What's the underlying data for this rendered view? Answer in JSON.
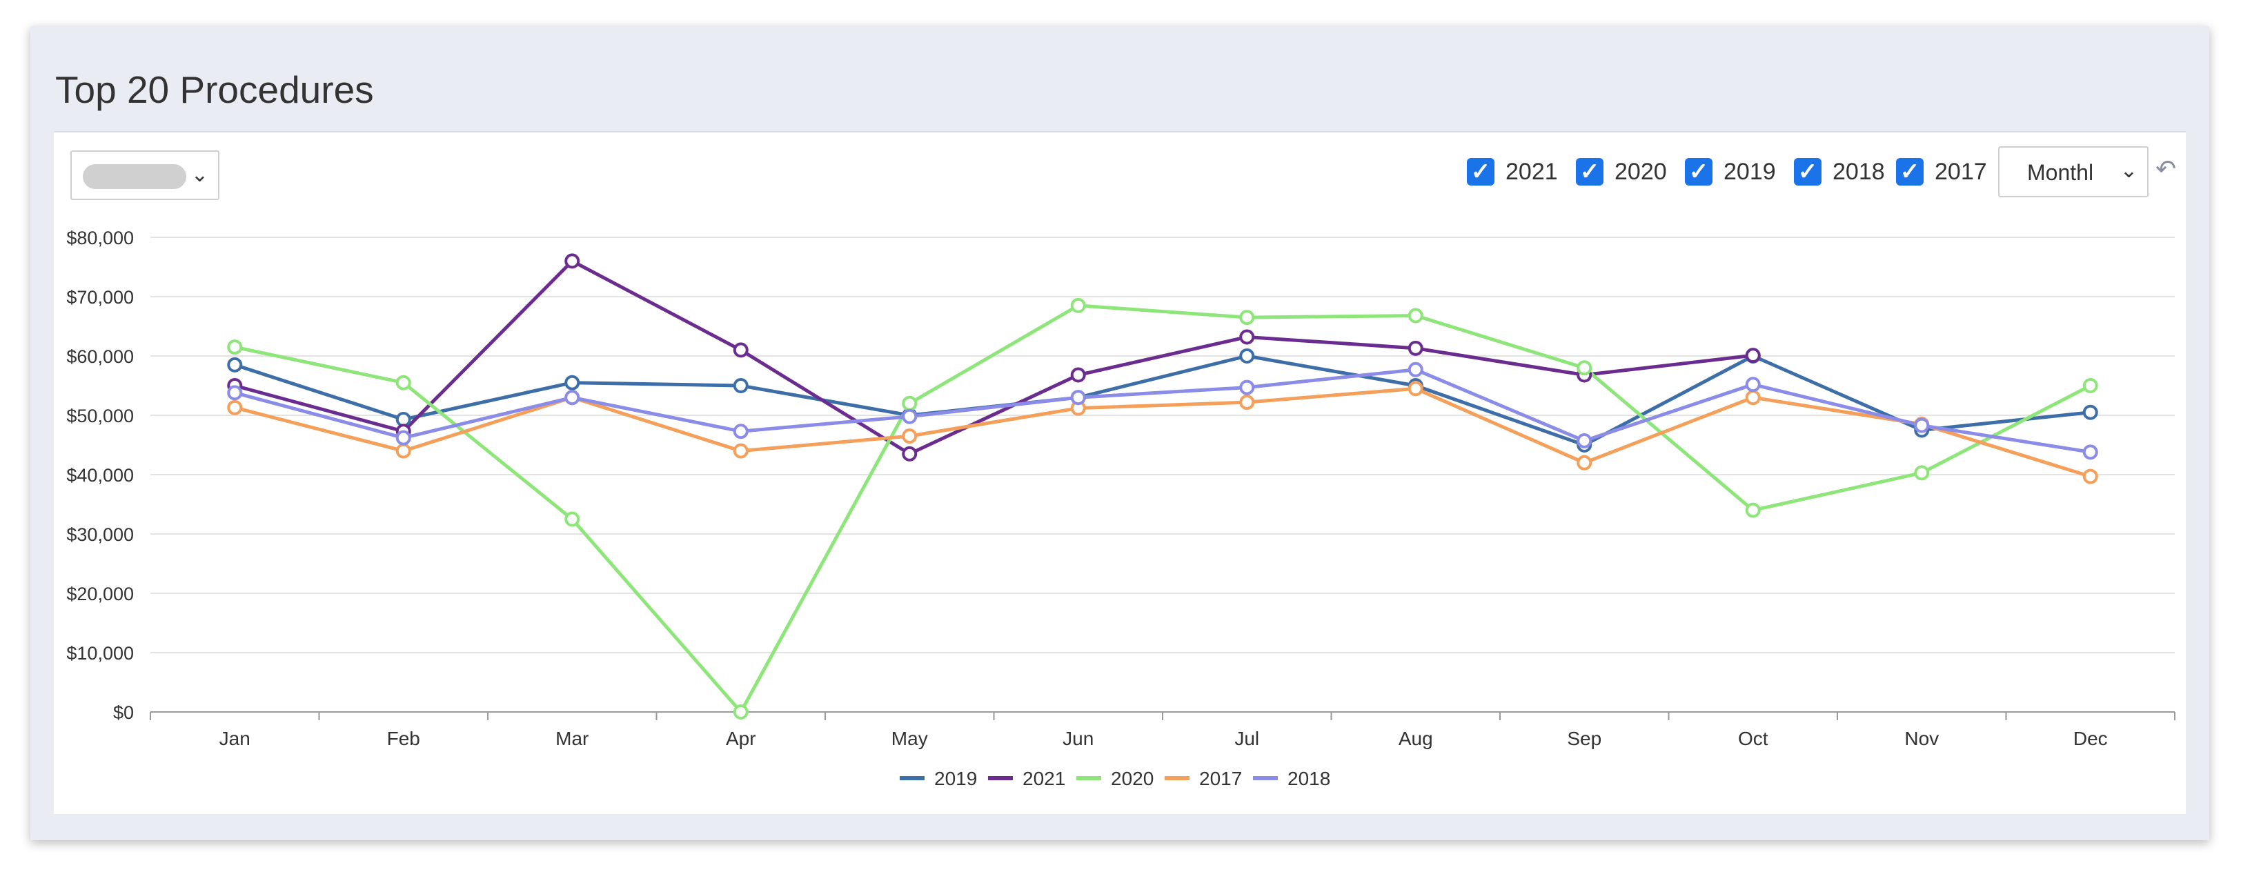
{
  "page": {
    "title": "Top 20 Procedures"
  },
  "controls": {
    "category_select": {
      "value": ""
    },
    "year_toggles": [
      {
        "label": "2021",
        "checked": true
      },
      {
        "label": "2020",
        "checked": true
      },
      {
        "label": "2019",
        "checked": true
      },
      {
        "label": "2018",
        "checked": true
      },
      {
        "label": "2017",
        "checked": true
      }
    ],
    "period_select": {
      "value": "Monthl"
    },
    "checkmark": "✓",
    "chevron": "⌄",
    "undo_icon": "↶"
  },
  "chart_data": {
    "type": "line",
    "categories": [
      "Jan",
      "Feb",
      "Mar",
      "Apr",
      "May",
      "Jun",
      "Jul",
      "Aug",
      "Sep",
      "Oct",
      "Nov",
      "Dec"
    ],
    "y_ticks": [
      "$0",
      "$10,000",
      "$20,000",
      "$30,000",
      "$40,000",
      "$50,000",
      "$60,000",
      "$70,000",
      "$80,000"
    ],
    "ylim": [
      0,
      80000
    ],
    "grid": "horizontal",
    "legend_position": "bottom-center",
    "series": [
      {
        "name": "2019",
        "color": "#3d6ea8",
        "values": [
          58500,
          49300,
          55500,
          55000,
          50000,
          53000,
          60000,
          55000,
          45000,
          60000,
          47500,
          50500
        ]
      },
      {
        "name": "2021",
        "color": "#6a2d8f",
        "values": [
          55000,
          47300,
          76000,
          61000,
          43500,
          56800,
          63200,
          61300,
          56800,
          60100,
          null,
          null
        ]
      },
      {
        "name": "2020",
        "color": "#8ee67a",
        "values": [
          61500,
          55500,
          32500,
          0,
          52000,
          68500,
          66500,
          66800,
          58000,
          34000,
          40300,
          55000
        ]
      },
      {
        "name": "2017",
        "color": "#f5a05a",
        "values": [
          51300,
          44000,
          53000,
          44000,
          46500,
          51200,
          52200,
          54500,
          42000,
          53000,
          48500,
          39700
        ]
      },
      {
        "name": "2018",
        "color": "#8b8ce8",
        "values": [
          53800,
          46200,
          53000,
          47300,
          49800,
          53000,
          54700,
          57700,
          45700,
          55200,
          48300,
          43800
        ]
      }
    ]
  }
}
